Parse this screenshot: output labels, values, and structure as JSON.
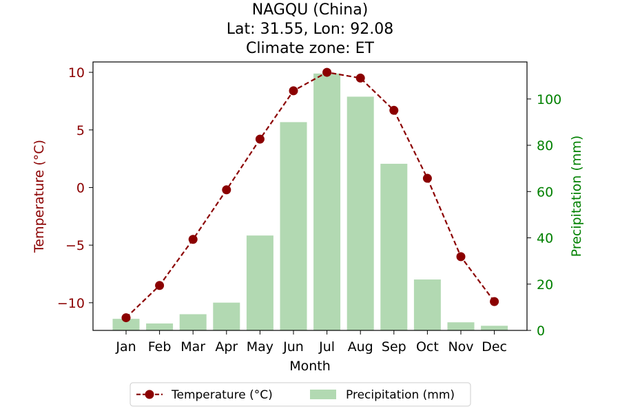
{
  "chart_data": {
    "type": "bar+line",
    "title_lines": [
      "NAGQU (China)",
      "Lat: 31.55, Lon: 92.08",
      "Climate zone: ET"
    ],
    "xlabel": "Month",
    "categories": [
      "Jan",
      "Feb",
      "Mar",
      "Apr",
      "May",
      "Jun",
      "Jul",
      "Aug",
      "Sep",
      "Oct",
      "Nov",
      "Dec"
    ],
    "y_left": {
      "label": "Temperature (°C)",
      "lim": [
        -12.4,
        10.9
      ],
      "ticks": [
        -10,
        -5,
        0,
        5,
        10
      ],
      "tick_labels": [
        "−10",
        "−5",
        "0",
        "5",
        "10"
      ],
      "color": "#8b0000"
    },
    "y_right": {
      "label": "Precipitation (mm)",
      "lim": [
        0,
        116
      ],
      "ticks": [
        0,
        20,
        40,
        60,
        80,
        100
      ],
      "tick_labels": [
        "0",
        "20",
        "40",
        "60",
        "80",
        "100"
      ],
      "color": "#008000"
    },
    "series": [
      {
        "name": "Temperature (°C)",
        "type": "line",
        "axis": "left",
        "color": "#8b0000",
        "line_style": "dashed",
        "marker": "circle",
        "values": [
          -11.3,
          -8.5,
          -4.5,
          -0.2,
          4.2,
          8.4,
          10.0,
          9.5,
          6.7,
          0.8,
          -6.0,
          -9.9
        ]
      },
      {
        "name": "Precipitation (mm)",
        "type": "bar",
        "axis": "right",
        "color": "#b2d9b2",
        "values": [
          5,
          3,
          7,
          12,
          41,
          90,
          111,
          101,
          72,
          22,
          3.5,
          2
        ]
      }
    ],
    "legend": {
      "placement": "bottom-center",
      "entries": [
        "Temperature (°C)",
        "Precipitation (mm)"
      ]
    },
    "grid": false
  }
}
